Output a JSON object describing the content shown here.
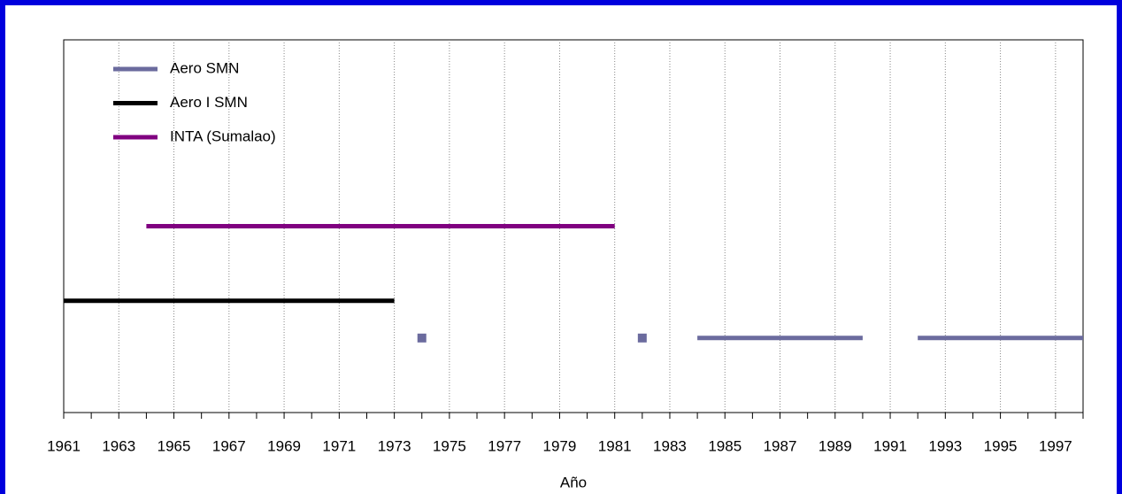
{
  "chart_data": {
    "type": "line",
    "x_label": "Año",
    "xlim": [
      1961,
      1998
    ],
    "xticks": [
      1961,
      1963,
      1965,
      1967,
      1969,
      1971,
      1973,
      1975,
      1977,
      1979,
      1981,
      1983,
      1985,
      1987,
      1989,
      1991,
      1993,
      1995,
      1997
    ],
    "xminorticks": [
      1962,
      1964,
      1966,
      1968,
      1970,
      1972,
      1974,
      1976,
      1978,
      1980,
      1982,
      1984,
      1986,
      1988,
      1990,
      1992,
      1994,
      1996,
      1998
    ],
    "ylim": [
      0,
      10
    ],
    "grid": true,
    "series": [
      {
        "name": "Aero SMN",
        "color": "#6b6b9e",
        "x": [
          1974,
          null,
          1982,
          null,
          1984,
          1990,
          null,
          1992,
          1998
        ],
        "values": [
          2,
          null,
          2,
          null,
          2,
          2,
          null,
          2,
          2
        ]
      },
      {
        "name": "Aero I SMN",
        "color": "#000000",
        "x": [
          1961,
          1973
        ],
        "values": [
          3,
          3
        ]
      },
      {
        "name": "INTA (Sumalao)",
        "color": "#800080",
        "x": [
          1964,
          1981
        ],
        "values": [
          5,
          5
        ]
      }
    ]
  }
}
